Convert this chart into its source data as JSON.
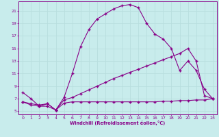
{
  "xlabel": "Windchill (Refroidissement éolien,°C)",
  "bg_color": "#c8ecec",
  "line_color": "#880088",
  "grid_color": "#b8dede",
  "xlim": [
    -0.5,
    23.5
  ],
  "ylim": [
    4.5,
    22.5
  ],
  "yticks": [
    5,
    7,
    9,
    11,
    13,
    15,
    17,
    19,
    21
  ],
  "xticks": [
    0,
    1,
    2,
    3,
    4,
    5,
    6,
    7,
    8,
    9,
    10,
    11,
    12,
    13,
    14,
    15,
    16,
    17,
    18,
    19,
    20,
    21,
    22,
    23
  ],
  "curve1_x": [
    0,
    1,
    2,
    3,
    4,
    5,
    6,
    7,
    8,
    9,
    10,
    11,
    12,
    13,
    14,
    15,
    16,
    17,
    18,
    19,
    20,
    21,
    22,
    23
  ],
  "curve1_y": [
    8.0,
    7.0,
    5.8,
    6.2,
    5.2,
    7.2,
    11.0,
    15.3,
    18.0,
    19.7,
    20.5,
    21.3,
    21.8,
    22.0,
    21.5,
    19.0,
    17.3,
    16.5,
    15.0,
    11.5,
    13.0,
    11.5,
    8.5,
    7.0
  ],
  "curve2_full_x": [
    0,
    1,
    2,
    3,
    4,
    5,
    6,
    7,
    8,
    9,
    10,
    11,
    12,
    13,
    14,
    15,
    16,
    17,
    18,
    19,
    20,
    21,
    22,
    23
  ],
  "curve2_full_y": [
    6.5,
    6.2,
    6.0,
    6.2,
    5.2,
    6.8,
    7.2,
    7.8,
    8.4,
    9.0,
    9.6,
    10.2,
    10.7,
    11.2,
    11.7,
    12.2,
    12.7,
    13.2,
    13.7,
    14.2,
    15.0,
    13.0,
    7.5,
    7.0
  ],
  "curve3_full_x": [
    0,
    1,
    2,
    3,
    4,
    5,
    6,
    7,
    8,
    9,
    10,
    11,
    12,
    13,
    14,
    15,
    16,
    17,
    18,
    19,
    20,
    21,
    22,
    23
  ],
  "curve3_full_y": [
    6.5,
    6.0,
    5.8,
    5.8,
    5.2,
    6.3,
    6.5,
    6.5,
    6.5,
    6.5,
    6.5,
    6.5,
    6.5,
    6.5,
    6.5,
    6.5,
    6.5,
    6.6,
    6.6,
    6.7,
    6.7,
    6.8,
    6.8,
    7.0
  ]
}
